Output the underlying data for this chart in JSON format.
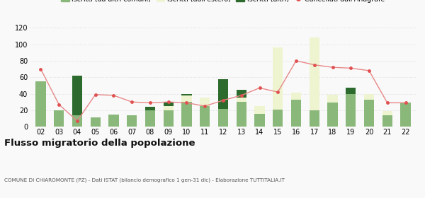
{
  "years": [
    "02",
    "03",
    "04",
    "05",
    "06",
    "07",
    "08",
    "09",
    "10",
    "11",
    "12",
    "13",
    "14",
    "15",
    "16",
    "17",
    "18",
    "19",
    "20",
    "21",
    "22"
  ],
  "iscritti_altri_comuni": [
    55,
    20,
    14,
    11,
    15,
    14,
    20,
    20,
    30,
    25,
    22,
    30,
    16,
    21,
    33,
    20,
    29,
    40,
    33,
    14,
    29
  ],
  "iscritti_estero": [
    0,
    0,
    0,
    0,
    0,
    0,
    0,
    5,
    8,
    10,
    0,
    5,
    9,
    75,
    8,
    88,
    10,
    0,
    7,
    5,
    0
  ],
  "iscritti_altri": [
    0,
    0,
    48,
    0,
    0,
    0,
    4,
    4,
    2,
    0,
    36,
    10,
    0,
    0,
    0,
    0,
    0,
    7,
    0,
    0,
    0
  ],
  "cancellati": [
    70,
    27,
    7,
    39,
    38,
    30,
    29,
    30,
    29,
    25,
    32,
    38,
    47,
    42,
    80,
    75,
    72,
    71,
    68,
    29,
    29
  ],
  "color_altri_comuni": "#8ab87a",
  "color_estero": "#eef4d0",
  "color_altri": "#2d6a2d",
  "color_cancellati": "#e05050",
  "color_line": "#e88888",
  "ylim": [
    0,
    120
  ],
  "yticks": [
    0,
    20,
    40,
    60,
    80,
    100,
    120
  ],
  "title": "Flusso migratorio della popolazione",
  "subtitle": "COMUNE DI CHIAROMONTE (PZ) - Dati ISTAT (bilancio demografico 1 gen-31 dic) - Elaborazione TUTTITALIA.IT",
  "bg_color": "#f9f9f9",
  "grid_color": "#d8d8d8"
}
